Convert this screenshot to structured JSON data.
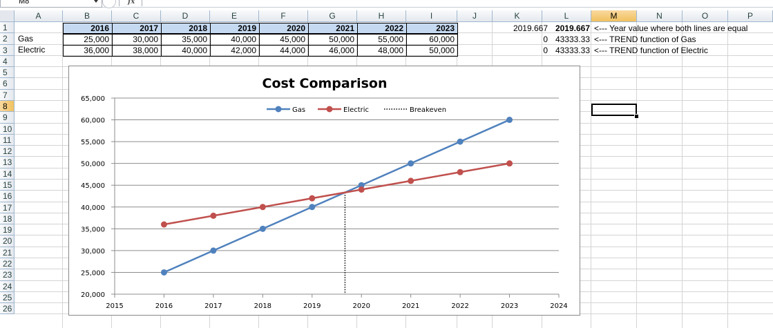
{
  "namebox": {
    "value": "M8"
  },
  "formula_bar": {
    "fx_label": "fx",
    "value": ""
  },
  "columns": [
    "A",
    "B",
    "C",
    "D",
    "E",
    "F",
    "G",
    "H",
    "I",
    "J",
    "K",
    "L",
    "M",
    "N",
    "O",
    "P"
  ],
  "selected_column": "M",
  "selected_row": "8",
  "rows": [
    "1",
    "2",
    "3",
    "4",
    "5",
    "6",
    "7",
    "8",
    "9",
    "10",
    "11",
    "12",
    "13",
    "14",
    "15",
    "16",
    "17",
    "18",
    "19",
    "20",
    "21",
    "22",
    "23",
    "24",
    "25",
    "26"
  ],
  "table": {
    "years": [
      "2016",
      "2017",
      "2018",
      "2019",
      "2020",
      "2021",
      "2022",
      "2023"
    ],
    "gas_label": "Gas",
    "electric_label": "Electric",
    "gas": [
      "25,000",
      "30,000",
      "35,000",
      "40,000",
      "45,000",
      "50,000",
      "55,000",
      "60,000"
    ],
    "electric": [
      "36,000",
      "38,000",
      "40,000",
      "42,000",
      "44,000",
      "46,000",
      "48,000",
      "50,000"
    ]
  },
  "calc": {
    "k1": "2019.667",
    "l1": "2019.667",
    "n1": "<--- Year value where both lines are equal",
    "k2": "0",
    "l2": "43333.33",
    "n2": "<--- TREND function of Gas",
    "k3": "0",
    "l3": "43333.33",
    "n3": "<--- TREND function of Electric"
  },
  "chart_data": {
    "type": "line",
    "title": "Cost Comparison",
    "xlabel": "",
    "ylabel": "",
    "x": [
      2016,
      2017,
      2018,
      2019,
      2020,
      2021,
      2022,
      2023
    ],
    "xlim": [
      2015,
      2024
    ],
    "ylim": [
      20000,
      65000
    ],
    "x_ticks": [
      "2015",
      "2016",
      "2017",
      "2018",
      "2019",
      "2020",
      "2021",
      "2022",
      "2023",
      "2024"
    ],
    "y_ticks": [
      "20,000",
      "25,000",
      "30,000",
      "35,000",
      "40,000",
      "45,000",
      "50,000",
      "55,000",
      "60,000",
      "65,000"
    ],
    "grid": true,
    "legend": "top-center",
    "series": [
      {
        "name": "Gas",
        "color": "#4f81bd",
        "values": [
          25000,
          30000,
          35000,
          40000,
          45000,
          50000,
          55000,
          60000
        ]
      },
      {
        "name": "Electric",
        "color": "#c0504d",
        "values": [
          36000,
          38000,
          40000,
          42000,
          44000,
          46000,
          48000,
          50000
        ]
      }
    ],
    "breakeven": {
      "name": "Breakeven",
      "x": 2019.667,
      "y": 43333.33,
      "style": "dotted",
      "color": "#000000"
    }
  }
}
